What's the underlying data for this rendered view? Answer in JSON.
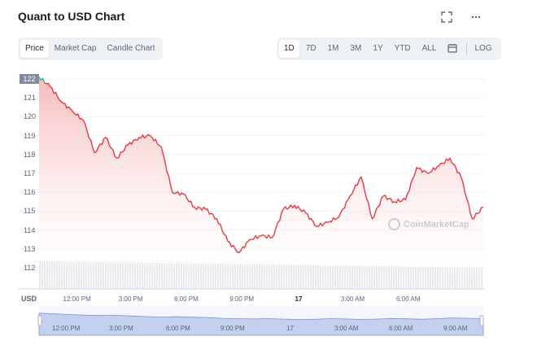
{
  "header": {
    "title": "Quant to USD Chart"
  },
  "toolbar_icons": [
    "fullscreen-icon",
    "more-icon"
  ],
  "chart_tabs": [
    {
      "label": "Price",
      "active": true
    },
    {
      "label": "Market Cap",
      "active": false
    },
    {
      "label": "Candle Chart",
      "active": false
    }
  ],
  "ranges": [
    {
      "label": "1D",
      "active": true
    },
    {
      "label": "7D",
      "active": false
    },
    {
      "label": "1M",
      "active": false
    },
    {
      "label": "3M",
      "active": false
    },
    {
      "label": "1Y",
      "active": false
    },
    {
      "label": "YTD",
      "active": false
    },
    {
      "label": "ALL",
      "active": false
    }
  ],
  "calendar_icon": "calendar-icon",
  "log_label": "LOG",
  "current_price_tag": "122",
  "currency_label": "USD",
  "watermark": "CoinMarketCap",
  "colors": {
    "line_down": "#ea3943",
    "line_up": "#16c784",
    "fill_top": "#f5b7b9",
    "volume": "#e3e6eb",
    "navigator": "#c3d1ef"
  },
  "chart_data": {
    "type": "area",
    "y_ticks": [
      "122",
      "121",
      "120",
      "119",
      "118",
      "117",
      "116",
      "115",
      "114",
      "113",
      "112"
    ],
    "x_ticks": [
      "12:00 PM",
      "3:00 PM",
      "6:00 PM",
      "9:00 PM",
      "17",
      "3:00 AM",
      "6:00 AM"
    ],
    "ylim": [
      111.6,
      122.2
    ],
    "grid": true,
    "x": [
      0,
      0.6,
      1.2,
      1.8,
      2.4,
      3,
      3.6,
      4.2,
      4.8,
      5.4,
      6,
      6.6,
      7.2,
      7.8,
      8.4,
      9,
      9.6,
      10.2,
      10.8,
      11.4,
      12,
      12.6,
      13.2,
      13.8,
      14.4,
      15,
      15.6,
      16.2,
      16.8,
      17.4,
      18,
      18.6,
      19.2,
      19.8,
      20.4,
      21,
      21.6,
      22.2,
      22.8,
      23.4,
      24
    ],
    "series": [
      {
        "values": [
          122.1,
          121.6,
          120.8,
          120.3,
          119.8,
          118.1,
          118.9,
          117.8,
          118.5,
          118.9,
          119.0,
          118.4,
          116.0,
          115.9,
          115.2,
          115.1,
          114.6,
          113.4,
          112.8,
          113.5,
          113.7,
          113.6,
          115.1,
          115.3,
          114.9,
          114.2,
          114.4,
          114.7,
          115.8,
          116.8,
          114.6,
          115.8,
          115.5,
          115.6,
          117.3,
          117.0,
          117.4,
          117.8,
          116.8,
          114.6,
          115.2
        ]
      }
    ],
    "navigator_x_ticks": [
      "12:00 PM",
      "3:00 PM",
      "6:00 PM",
      "9:00 PM",
      "17",
      "3:00 AM",
      "6:00 AM",
      "9:00 AM"
    ]
  }
}
